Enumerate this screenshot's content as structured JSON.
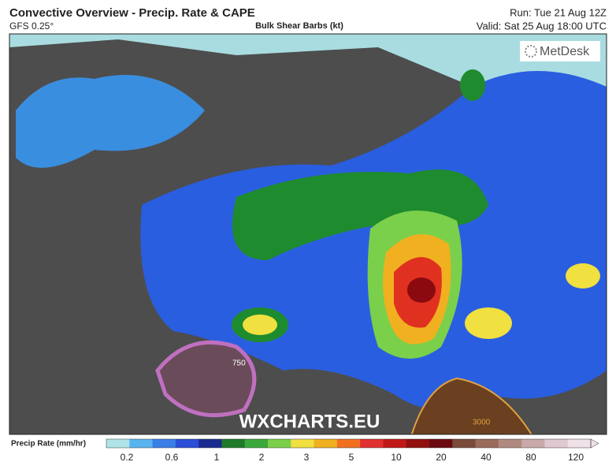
{
  "header": {
    "title": "Convective Overview - Precip. Rate & CAPE",
    "model": "GFS 0.25°",
    "subtitle": "Bulk Shear Barbs (kt)",
    "run": "Run: Tue 21 Aug 12Z",
    "valid": "Valid: Sat 25 Aug 18:00 UTC"
  },
  "logo": "MetDesk",
  "watermark": "WXCHARTS.EU",
  "contours": [
    "750",
    "3000"
  ],
  "colorbar": {
    "label": "Precip Rate (mm/hr)",
    "ticks": [
      0.2,
      0.6,
      1,
      2,
      3,
      5,
      10,
      20,
      40,
      80,
      120
    ]
  }
}
